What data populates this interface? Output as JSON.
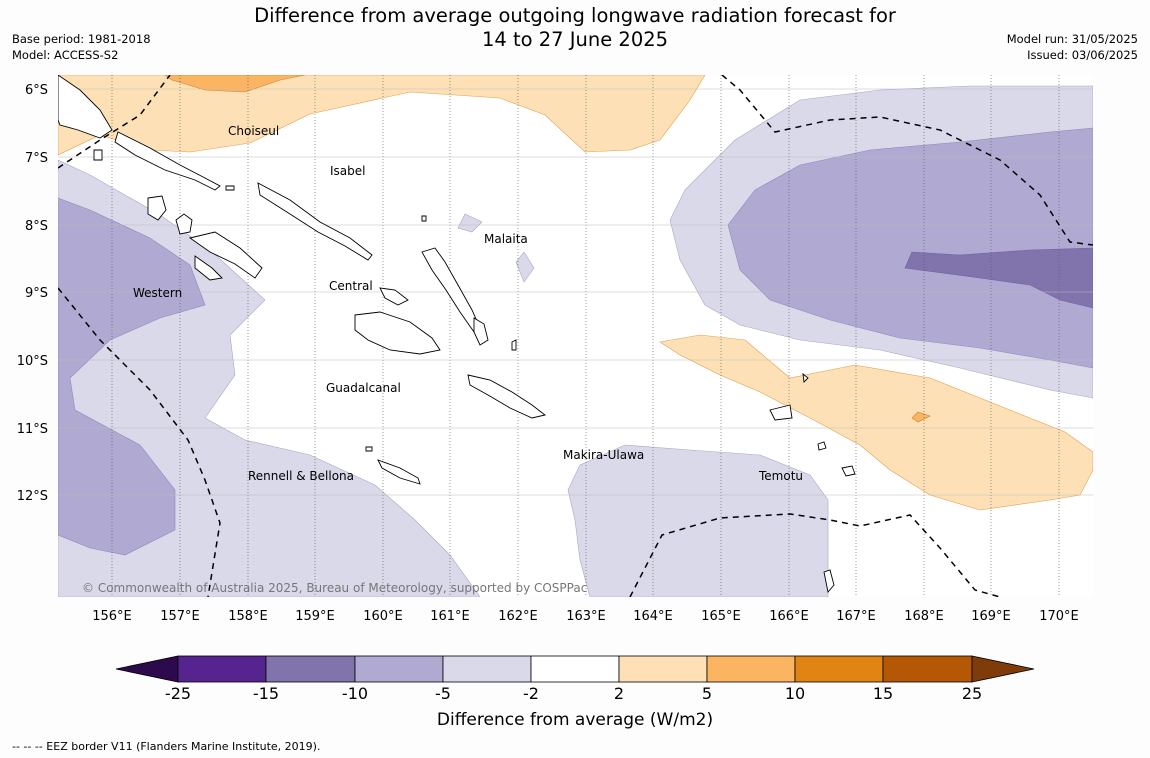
{
  "title": {
    "line1": "Difference from average outgoing longwave radiation forecast for",
    "line2": "14 to 27 June 2025"
  },
  "meta_left": {
    "base_period": "Base period: 1981-2018",
    "model": "Model: ACCESS-S2"
  },
  "meta_right": {
    "model_run": "Model run: 31/05/2025",
    "issued": "Issued: 03/06/2025"
  },
  "map": {
    "lat_labels": [
      "6°S",
      "7°S",
      "8°S",
      "9°S",
      "10°S",
      "11°S",
      "12°S"
    ],
    "lon_labels": [
      "156°E",
      "157°E",
      "158°E",
      "159°E",
      "160°E",
      "161°E",
      "162°E",
      "163°E",
      "164°E",
      "165°E",
      "166°E",
      "167°E",
      "168°E",
      "169°E",
      "170°E"
    ],
    "province_labels": [
      "Choiseul",
      "Isabel",
      "Malaita",
      "Western",
      "Central",
      "Guadalcanal",
      "Makira-Ulawa",
      "Rennell & Bellona",
      "Temotu"
    ],
    "copyright": "© Commonwealth of Australia 2025, Bureau of Meteorology, supported by COSPPac"
  },
  "colorbar": {
    "title": "Difference from average (W/m2)",
    "ticks": [
      "-25",
      "-15",
      "-10",
      "-5",
      "-2",
      "2",
      "5",
      "10",
      "15",
      "25"
    ],
    "colors": [
      "#2d0a4b",
      "#56248e",
      "#8173ac",
      "#b0a9d2",
      "#d9d9ea",
      "#ffffff",
      "#fde0b6",
      "#fbb562",
      "#e08414",
      "#b45806",
      "#7f3b08"
    ]
  },
  "eez_note": "--  --  -- EEZ border V11 (Flanders Marine Institute, 2019)."
}
